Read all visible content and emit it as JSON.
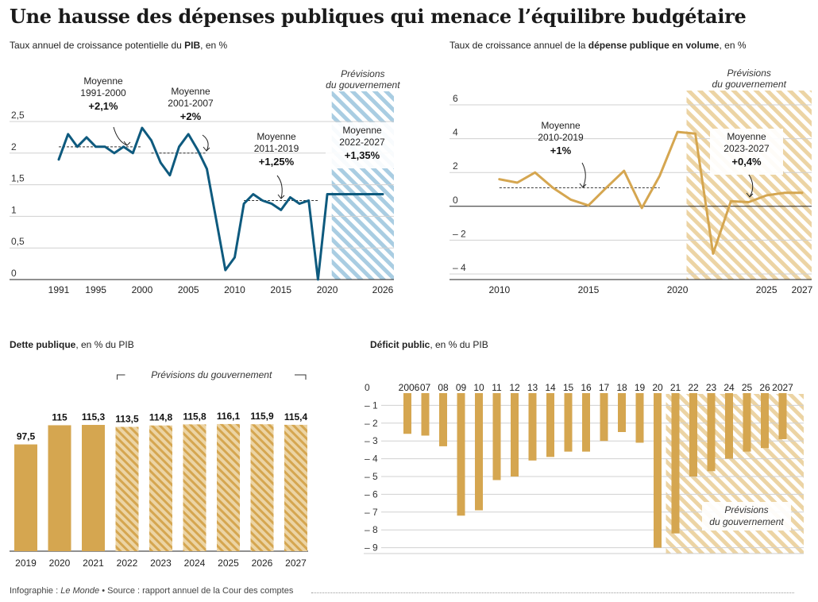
{
  "title": "Une hausse des dépenses publiques qui menace l’équilibre budgétaire",
  "footer": {
    "credit_prefix": "Infographie : ",
    "credit_outlet": "Le Monde",
    "bullet": " • ",
    "source": "Source : rapport annuel de la Cour des comptes"
  },
  "colors": {
    "blue": "#0e5a7e",
    "blue_hatch": "#a9cde2",
    "gold": "#d5a650",
    "gold_hatch": "#ecd4a4",
    "grid": "#d0d0d0",
    "axis": "#222222"
  },
  "chart_data": [
    {
      "id": "pib",
      "type": "line",
      "subtitle_pre": "Taux annuel de croissance potentielle du ",
      "subtitle_bold": "PIB",
      "subtitle_post": ", en %",
      "x": [
        1991,
        1992,
        1993,
        1994,
        1995,
        1996,
        1997,
        1998,
        1999,
        2000,
        2001,
        2002,
        2003,
        2004,
        2005,
        2006,
        2007,
        2008,
        2009,
        2010,
        2011,
        2012,
        2013,
        2014,
        2015,
        2016,
        2017,
        2018,
        2019,
        2020,
        2021,
        2022,
        2023,
        2024,
        2025,
        2026
      ],
      "values": [
        1.9,
        2.3,
        2.1,
        2.25,
        2.1,
        2.1,
        2.0,
        2.1,
        2.0,
        2.4,
        2.2,
        1.85,
        1.65,
        2.1,
        2.3,
        2.05,
        1.75,
        0.95,
        0.15,
        0.35,
        1.2,
        1.35,
        1.25,
        1.2,
        1.1,
        1.3,
        1.2,
        1.25,
        0.0,
        1.35,
        1.35,
        1.35,
        1.35,
        1.35,
        1.35,
        1.35
      ],
      "xlim": [
        1991,
        2026
      ],
      "ylim": [
        0,
        2.5
      ],
      "yticks": [
        "0",
        "0,5",
        "1",
        "1,5",
        "2",
        "2,5"
      ],
      "ytick_values": [
        0,
        0.5,
        1,
        1.5,
        2,
        2.5
      ],
      "xticks": [
        "1991",
        "1995",
        "2000",
        "2005",
        "2010",
        "2015",
        "2020",
        "2026"
      ],
      "xtick_values": [
        1991,
        1995,
        2000,
        2005,
        2010,
        2015,
        2020,
        2026
      ],
      "forecast": {
        "start": 2021,
        "end": 2026,
        "label": [
          "Prévisions",
          "du gouvernement"
        ]
      },
      "averages": [
        {
          "label": [
            "Moyenne",
            "1991-2000"
          ],
          "value": "+2,1%",
          "from": 1991,
          "to": 2000,
          "y": 2.1
        },
        {
          "label": [
            "Moyenne",
            "2001-2007"
          ],
          "value": "+2%",
          "from": 2001,
          "to": 2007,
          "y": 2.0
        },
        {
          "label": [
            "Moyenne",
            "2011-2019"
          ],
          "value": "+1,25%",
          "from": 2011,
          "to": 2019,
          "y": 1.25
        },
        {
          "label": [
            "Moyenne",
            "2022-2027"
          ],
          "value": "+1,35%",
          "from": 2022,
          "to": 2026,
          "y": 1.35
        }
      ]
    },
    {
      "id": "depense",
      "type": "line",
      "subtitle_pre": "Taux de croissance annuel de la ",
      "subtitle_bold": "dépense publique en volume",
      "subtitle_post": ", en %",
      "x": [
        2010,
        2011,
        2012,
        2013,
        2014,
        2015,
        2016,
        2017,
        2018,
        2019,
        2020,
        2021,
        2022,
        2023,
        2024,
        2025,
        2026,
        2027
      ],
      "values": [
        1.6,
        1.4,
        2.0,
        1.1,
        0.4,
        0.05,
        1.1,
        2.1,
        -0.1,
        1.8,
        4.4,
        4.3,
        -2.8,
        0.3,
        0.25,
        0.65,
        0.8,
        0.8
      ],
      "xlim": [
        2008,
        2027
      ],
      "ylim": [
        -4,
        6
      ],
      "yticks": [
        "– 4",
        "– 2",
        "0",
        "2",
        "4",
        "6"
      ],
      "ytick_values": [
        -4,
        -2,
        0,
        2,
        4,
        6
      ],
      "xticks": [
        "2010",
        "2015",
        "2020",
        "2025",
        "2027"
      ],
      "xtick_values": [
        2010,
        2015,
        2020,
        2025,
        2027
      ],
      "forecast": {
        "start": 2021,
        "end": 2027,
        "label": [
          "Prévisions",
          "du gouvernement"
        ]
      },
      "averages": [
        {
          "label": [
            "Moyenne",
            "2010-2019"
          ],
          "value": "+1%",
          "from": 2010,
          "to": 2019,
          "y": 1.1
        },
        {
          "label": [
            "Moyenne",
            "2023-2027"
          ],
          "value": "+0,4%",
          "from": 2023,
          "to": 2027,
          "y": 0.4
        }
      ]
    },
    {
      "id": "dette",
      "type": "bar",
      "subtitle_bold": "Dette publique",
      "subtitle_post": ", en % du PIB",
      "categories": [
        "2019",
        "2020",
        "2021",
        "2022",
        "2023",
        "2024",
        "2025",
        "2026",
        "2027"
      ],
      "values": [
        97.5,
        115,
        115.3,
        113.5,
        114.8,
        115.8,
        116.1,
        115.9,
        115.4
      ],
      "value_labels": [
        "97,5",
        "115",
        "115,3",
        "113,5",
        "114,8",
        "115,8",
        "116,1",
        "115,9",
        "115,4"
      ],
      "ylim": [
        0,
        120
      ],
      "forecast_from_index": 3,
      "forecast_label": "Prévisions du gouvernement"
    },
    {
      "id": "deficit",
      "type": "bar",
      "subtitle_bold": "Déficit public",
      "subtitle_post": ", en % du PIB",
      "categories": [
        "2006",
        "07",
        "08",
        "09",
        "10",
        "11",
        "12",
        "13",
        "14",
        "15",
        "16",
        "17",
        "18",
        "19",
        "20",
        "21",
        "22",
        "23",
        "24",
        "25",
        "26",
        "2027"
      ],
      "values": [
        -2.6,
        -2.7,
        -3.3,
        -7.2,
        -6.9,
        -5.2,
        -5.0,
        -4.1,
        -3.9,
        -3.6,
        -3.6,
        -3.0,
        -2.5,
        -3.1,
        -9.0,
        -8.2,
        -5.0,
        -4.7,
        -4.0,
        -3.6,
        -3.4,
        -2.9
      ],
      "ylim": [
        -9.4,
        0
      ],
      "yticks": [
        "0",
        "– 1",
        "– 2",
        "– 3",
        "– 4",
        "– 5",
        "– 6",
        "– 7",
        "– 8",
        "– 9"
      ],
      "ytick_values": [
        0,
        -1,
        -2,
        -3,
        -4,
        -5,
        -6,
        -7,
        -8,
        -9
      ],
      "forecast_from_index": 15,
      "forecast_label": [
        "Prévisions",
        "du gouvernement"
      ]
    }
  ]
}
